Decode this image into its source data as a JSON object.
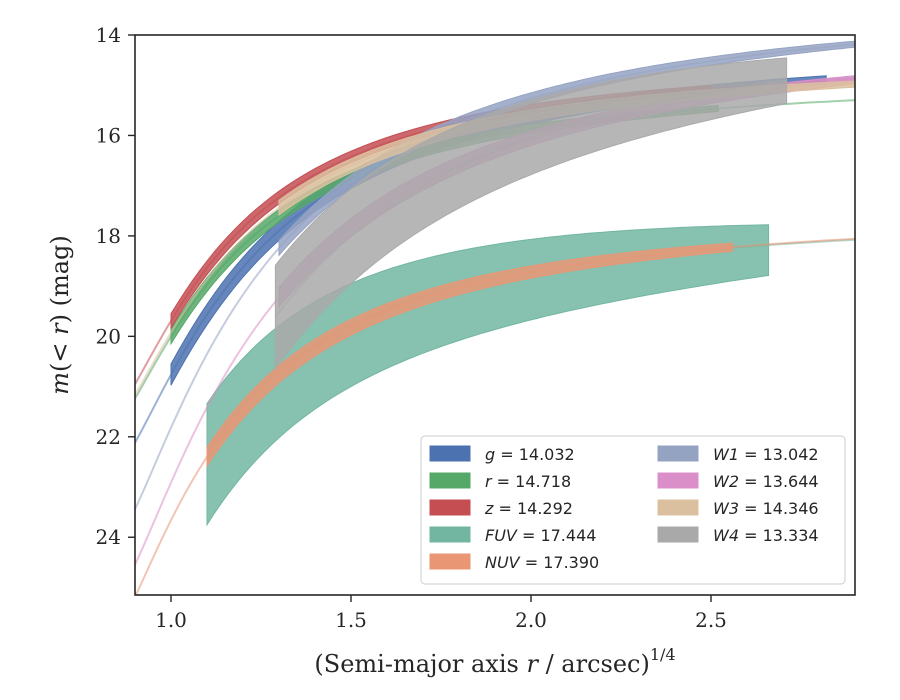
{
  "chart_data": {
    "type": "line",
    "xlabel": "(Semi-major axis r / arcsec)",
    "xlabel_italic": "r",
    "xlabel_pre": "(Semi-major axis ",
    "xlabel_post": " / arcsec)",
    "xlabel_sup": "1/4",
    "ylabel": "m(< r) (mag)",
    "ylabel_italic": "m",
    "ylabel_mid": "(< ",
    "ylabel_r": "r",
    "ylabel_post": ") (mag)",
    "xlim": [
      0.9,
      2.9
    ],
    "ylim": [
      25.15,
      14.0
    ],
    "y_inverted": true,
    "x_ticks": [
      1.0,
      1.5,
      2.0,
      2.5
    ],
    "x_tick_labels": [
      "1.0",
      "1.5",
      "2.0",
      "2.5"
    ],
    "y_ticks": [
      14,
      16,
      18,
      20,
      22,
      24
    ],
    "y_tick_labels": [
      "14",
      "16",
      "18",
      "20",
      "22",
      "24"
    ],
    "grid": false,
    "legend_position": "lower-right",
    "series": [
      {
        "name": "g",
        "label_value": "14.032",
        "color": "#4c72b0",
        "x0": 0.9,
        "x_end": 2.82,
        "x_band_start": 1.0,
        "A": 14.032,
        "B": 8.6,
        "c": 0.9,
        "band": [
          0.08,
          0.08
        ],
        "ext_end": 2.9
      },
      {
        "name": "r",
        "label_value": "14.718",
        "color": "#55a868",
        "x0": 0.9,
        "x_end": 2.52,
        "x_band_start": 1.0,
        "A": 14.718,
        "B": 7.0,
        "c": 1.05,
        "band": [
          0.06,
          0.06
        ],
        "ext_end": 2.9
      },
      {
        "name": "z",
        "label_value": "14.292",
        "color": "#c44e52",
        "x0": 0.9,
        "x_end": 2.5,
        "x_band_start": 1.0,
        "A": 14.292,
        "B": 7.15,
        "c": 1.05,
        "band": [
          0.06,
          0.06
        ],
        "ext_end": 2.9
      },
      {
        "name": "FUV",
        "label_value": "17.444",
        "color": "#72b6a1",
        "x0": 1.1,
        "x_end": 2.67,
        "x_band_start": 1.1,
        "A": 17.444,
        "B": 8.3,
        "c": 1.15,
        "band": [
          0.4,
          0.6
        ],
        "ext_end": 2.9
      },
      {
        "name": "NUV",
        "label_value": "17.390",
        "color": "#e99675",
        "x0": 0.9,
        "x_end": 2.57,
        "x_band_start": 1.1,
        "A": 17.39,
        "B": 8.4,
        "c": 1.1,
        "band": [
          0.08,
          0.08
        ],
        "ext_end": 2.9
      },
      {
        "name": "W1",
        "label_value": "13.042",
        "color": "#95a3c3",
        "x0": 0.9,
        "x_end": 2.9,
        "x_band_start": 1.3,
        "A": 13.042,
        "B": 11.0,
        "c": 0.82,
        "band": [
          0.06,
          0.06
        ],
        "ext_end": 2.9
      },
      {
        "name": "W2",
        "label_value": "13.644",
        "color": "#db8fc8",
        "x0": 0.9,
        "x_end": 2.9,
        "x_band_start": 1.3,
        "A": 13.644,
        "B": 11.5,
        "c": 0.78,
        "band": [
          0.08,
          0.08
        ],
        "ext_end": 2.9
      },
      {
        "name": "W3",
        "label_value": "14.346",
        "color": "#dbc09f",
        "x0": 0.9,
        "x_end": 2.9,
        "x_band_start": 1.3,
        "A": 14.346,
        "B": 7.3,
        "c": 1.0,
        "band": [
          0.06,
          0.06
        ],
        "ext_end": 2.9
      },
      {
        "name": "W4",
        "label_value": "13.334",
        "color": "#a9a9a9",
        "x0": 1.29,
        "x_end": 2.72,
        "x_band_start": 1.29,
        "A": 13.334,
        "B": 12.5,
        "c": 0.75,
        "band": [
          0.45,
          0.45
        ],
        "ext_end": 2.72
      }
    ]
  }
}
